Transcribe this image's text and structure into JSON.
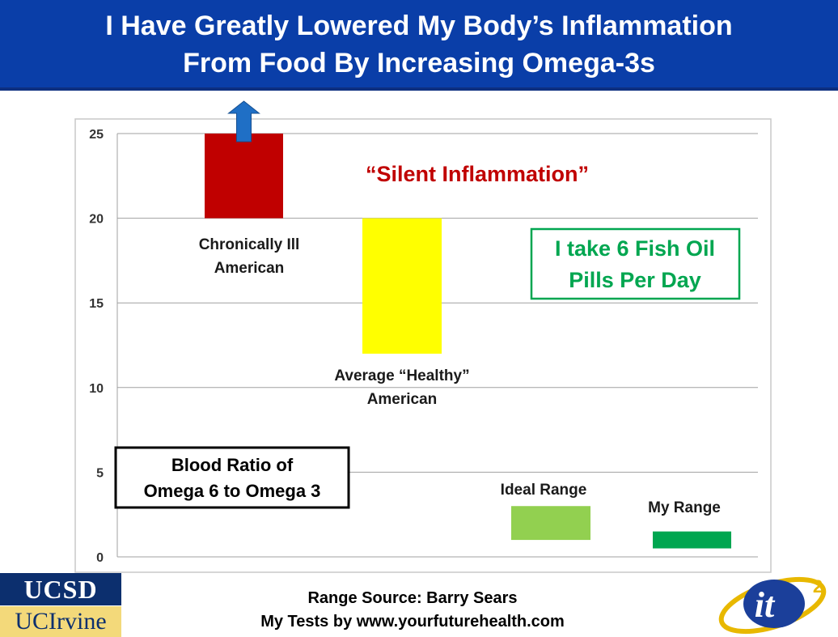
{
  "header": {
    "title_line1": "I Have Greatly Lowered My Body’s Inflammation",
    "title_line2": "From Food By Increasing Omega-3s"
  },
  "chart_data": {
    "type": "bar",
    "title": "",
    "xlabel": "",
    "ylabel": "",
    "ylim": [
      0,
      25
    ],
    "yticks": [
      0,
      5,
      10,
      15,
      20,
      25
    ],
    "grid": true,
    "bars": [
      {
        "label": "Chronically Ill American",
        "low": 20,
        "high": 25,
        "color": "#c00000",
        "arrow_up": true
      },
      {
        "label": "Average “Healthy” American",
        "low": 12,
        "high": 20,
        "color": "#ffff00"
      },
      {
        "label": "Ideal Range",
        "low": 1,
        "high": 3,
        "color": "#92d050"
      },
      {
        "label": "My Range",
        "low": 0.5,
        "high": 1.5,
        "color": "#00a650"
      }
    ],
    "annotations": {
      "silent_inflammation": "“Silent Inflammation”",
      "fish_oil_line1": "I take 6 Fish Oil",
      "fish_oil_line2": "Pills Per Day",
      "ratio_line1": "Blood Ratio of",
      "ratio_line2": "Omega 6 to Omega 3"
    },
    "label_lines": [
      [
        "Chronically Ill",
        "American"
      ],
      [
        "Average “Healthy”",
        "American"
      ],
      [
        "Ideal Range"
      ],
      [
        "My Range"
      ]
    ]
  },
  "footer": {
    "line1": "Range Source: Barry Sears",
    "line2": "My Tests by www.yourfuturehealth.com"
  },
  "logos": {
    "ucsd": "UCSD",
    "uci": "UCIrvine",
    "it2_main": "it",
    "it2_sup": "2"
  },
  "colors": {
    "header_bg": "#0a3ea8",
    "arrow": "#1f6fc5",
    "annotation_red": "#c00000",
    "fish_oil_green": "#00a650"
  }
}
